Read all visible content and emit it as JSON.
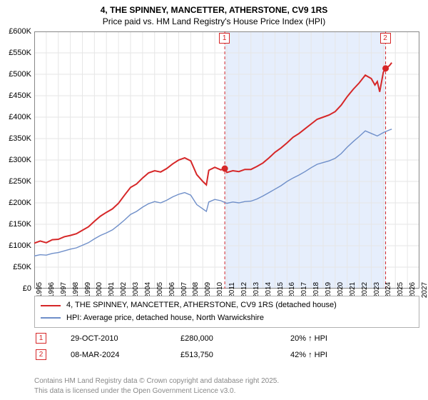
{
  "title_line1": "4, THE SPINNEY, MANCETTER, ATHERSTONE, CV9 1RS",
  "title_line2": "Price paid vs. HM Land Registry's House Price Index (HPI)",
  "chart": {
    "type": "line",
    "background_color": "#ffffff",
    "grid_color": "#e6e6e6",
    "shade_color": "#e6eefc",
    "shade_from_year": 2010.83,
    "shade_to_year": 2024.19,
    "x": {
      "min": 1995,
      "max": 2027,
      "ticks": [
        1995,
        1996,
        1997,
        1998,
        1999,
        2000,
        2001,
        2002,
        2003,
        2004,
        2005,
        2006,
        2007,
        2008,
        2009,
        2010,
        2011,
        2012,
        2013,
        2014,
        2015,
        2016,
        2017,
        2018,
        2019,
        2020,
        2021,
        2022,
        2023,
        2024,
        2025,
        2026,
        2027
      ]
    },
    "y": {
      "min": 0,
      "max": 600000,
      "tick_step": 50000,
      "tick_labels": [
        "£0",
        "£50K",
        "£100K",
        "£150K",
        "£200K",
        "£250K",
        "£300K",
        "£350K",
        "£400K",
        "£450K",
        "£500K",
        "£550K",
        "£600K"
      ]
    },
    "series": [
      {
        "name": "4, THE SPINNEY, MANCETTER, ATHERSTONE, CV9 1RS (detached house)",
        "color": "#d62728",
        "line_width": 2,
        "points": [
          [
            1995,
            106000
          ],
          [
            1995.5,
            111000
          ],
          [
            1996,
            107000
          ],
          [
            1996.5,
            114000
          ],
          [
            1997,
            115000
          ],
          [
            1997.5,
            121000
          ],
          [
            1998,
            124000
          ],
          [
            1998.5,
            128000
          ],
          [
            1999,
            136000
          ],
          [
            1999.5,
            144000
          ],
          [
            2000,
            157000
          ],
          [
            2000.5,
            169000
          ],
          [
            2001,
            178000
          ],
          [
            2001.5,
            186000
          ],
          [
            2002,
            199000
          ],
          [
            2002.5,
            218000
          ],
          [
            2003,
            236000
          ],
          [
            2003.5,
            244000
          ],
          [
            2004,
            258000
          ],
          [
            2004.5,
            270000
          ],
          [
            2005,
            275000
          ],
          [
            2005.5,
            272000
          ],
          [
            2006,
            280000
          ],
          [
            2006.5,
            291000
          ],
          [
            2007,
            300000
          ],
          [
            2007.5,
            305000
          ],
          [
            2008,
            298000
          ],
          [
            2008.5,
            266000
          ],
          [
            2009,
            250000
          ],
          [
            2009.3,
            242000
          ],
          [
            2009.5,
            276000
          ],
          [
            2010,
            283000
          ],
          [
            2010.5,
            277000
          ],
          [
            2010.83,
            280000
          ],
          [
            2011,
            271000
          ],
          [
            2011.5,
            275000
          ],
          [
            2012,
            273000
          ],
          [
            2012.5,
            278000
          ],
          [
            2013,
            278000
          ],
          [
            2013.5,
            285000
          ],
          [
            2014,
            293000
          ],
          [
            2014.5,
            305000
          ],
          [
            2015,
            318000
          ],
          [
            2015.5,
            328000
          ],
          [
            2016,
            340000
          ],
          [
            2016.5,
            353000
          ],
          [
            2017,
            362000
          ],
          [
            2017.5,
            373000
          ],
          [
            2018,
            384000
          ],
          [
            2018.5,
            395000
          ],
          [
            2019,
            400000
          ],
          [
            2019.5,
            405000
          ],
          [
            2020,
            413000
          ],
          [
            2020.5,
            428000
          ],
          [
            2021,
            448000
          ],
          [
            2021.5,
            465000
          ],
          [
            2022,
            480000
          ],
          [
            2022.5,
            498000
          ],
          [
            2023,
            490000
          ],
          [
            2023.3,
            475000
          ],
          [
            2023.5,
            483000
          ],
          [
            2023.7,
            459000
          ],
          [
            2024,
            505000
          ],
          [
            2024.19,
            513750
          ],
          [
            2024.5,
            520000
          ],
          [
            2024.7,
            527000
          ]
        ]
      },
      {
        "name": "HPI: Average price, detached house, North Warwickshire",
        "color": "#6f8fc9",
        "line_width": 1.4,
        "points": [
          [
            1995,
            76000
          ],
          [
            1995.5,
            79000
          ],
          [
            1996,
            78000
          ],
          [
            1996.5,
            82000
          ],
          [
            1997,
            84000
          ],
          [
            1997.5,
            88000
          ],
          [
            1998,
            92000
          ],
          [
            1998.5,
            95000
          ],
          [
            1999,
            101000
          ],
          [
            1999.5,
            107000
          ],
          [
            2000,
            116000
          ],
          [
            2000.5,
            124000
          ],
          [
            2001,
            130000
          ],
          [
            2001.5,
            137000
          ],
          [
            2002,
            148000
          ],
          [
            2002.5,
            160000
          ],
          [
            2003,
            173000
          ],
          [
            2003.5,
            180000
          ],
          [
            2004,
            190000
          ],
          [
            2004.5,
            198000
          ],
          [
            2005,
            203000
          ],
          [
            2005.5,
            200000
          ],
          [
            2006,
            206000
          ],
          [
            2006.5,
            214000
          ],
          [
            2007,
            220000
          ],
          [
            2007.5,
            224000
          ],
          [
            2008,
            218000
          ],
          [
            2008.5,
            196000
          ],
          [
            2009,
            186000
          ],
          [
            2009.3,
            180000
          ],
          [
            2009.5,
            202000
          ],
          [
            2010,
            208000
          ],
          [
            2010.5,
            205000
          ],
          [
            2011,
            199000
          ],
          [
            2011.5,
            202000
          ],
          [
            2012,
            200000
          ],
          [
            2012.5,
            203000
          ],
          [
            2013,
            204000
          ],
          [
            2013.5,
            209000
          ],
          [
            2014,
            216000
          ],
          [
            2014.5,
            224000
          ],
          [
            2015,
            232000
          ],
          [
            2015.5,
            240000
          ],
          [
            2016,
            250000
          ],
          [
            2016.5,
            258000
          ],
          [
            2017,
            265000
          ],
          [
            2017.5,
            273000
          ],
          [
            2018,
            282000
          ],
          [
            2018.5,
            290000
          ],
          [
            2019,
            294000
          ],
          [
            2019.5,
            298000
          ],
          [
            2020,
            304000
          ],
          [
            2020.5,
            315000
          ],
          [
            2021,
            330000
          ],
          [
            2021.5,
            343000
          ],
          [
            2022,
            355000
          ],
          [
            2022.5,
            368000
          ],
          [
            2023,
            362000
          ],
          [
            2023.5,
            356000
          ],
          [
            2024,
            364000
          ],
          [
            2024.5,
            370000
          ],
          [
            2024.7,
            372000
          ]
        ]
      }
    ],
    "sale_markers": [
      {
        "n": "1",
        "year": 2010.83,
        "price": 280000
      },
      {
        "n": "2",
        "year": 2024.19,
        "price": 513750
      }
    ]
  },
  "legend": {
    "items": [
      {
        "color": "#d62728",
        "label": "4, THE SPINNEY, MANCETTER, ATHERSTONE, CV9 1RS (detached house)"
      },
      {
        "color": "#6f8fc9",
        "label": "HPI: Average price, detached house, North Warwickshire"
      }
    ]
  },
  "marker_rows": [
    {
      "n": "1",
      "date": "29-OCT-2010",
      "price": "£280,000",
      "pct": "20% ↑ HPI"
    },
    {
      "n": "2",
      "date": "08-MAR-2024",
      "price": "£513,750",
      "pct": "42% ↑ HPI"
    }
  ],
  "footer_line1": "Contains HM Land Registry data © Crown copyright and database right 2025.",
  "footer_line2": "This data is licensed under the Open Government Licence v3.0."
}
